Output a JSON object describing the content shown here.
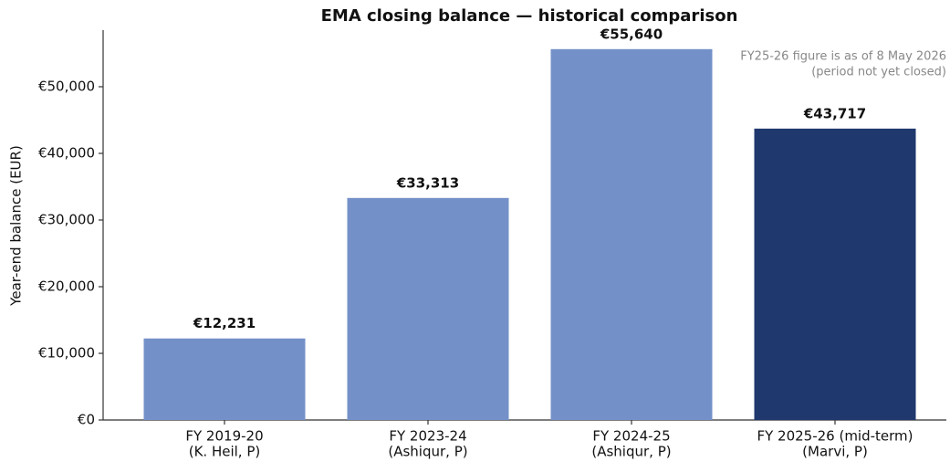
{
  "chart_data": {
    "type": "bar",
    "title": "EMA closing balance — historical comparison",
    "y_label": "Year-end balance (EUR)",
    "annotation": [
      "FY25-26 figure is as of 8 May 2026",
      "(period not yet closed)"
    ],
    "categories": [
      [
        "FY 2019-20",
        "(K. Heil, P)"
      ],
      [
        "FY 2023-24",
        "(Ashiqur, P)"
      ],
      [
        "FY 2024-25",
        "(Ashiqur, P)"
      ],
      [
        "FY 2025-26 (mid-term)",
        "(Marvi, P)"
      ]
    ],
    "values": [
      12231,
      33313,
      55640,
      43717
    ],
    "value_labels": [
      "€12,231",
      "€33,313",
      "€55,640",
      "€43,717"
    ],
    "colors": [
      "#7391c8",
      "#7391c8",
      "#7391c8",
      "#1f386e"
    ],
    "ylim": [
      0,
      58422
    ],
    "yticks": [
      {
        "value": 0,
        "label": "€0"
      },
      {
        "value": 10000,
        "label": "€10,000"
      },
      {
        "value": 20000,
        "label": "€20,000"
      },
      {
        "value": 30000,
        "label": "€30,000"
      },
      {
        "value": 40000,
        "label": "€40,000"
      },
      {
        "value": 50000,
        "label": "€50,000"
      }
    ],
    "grid": false
  }
}
